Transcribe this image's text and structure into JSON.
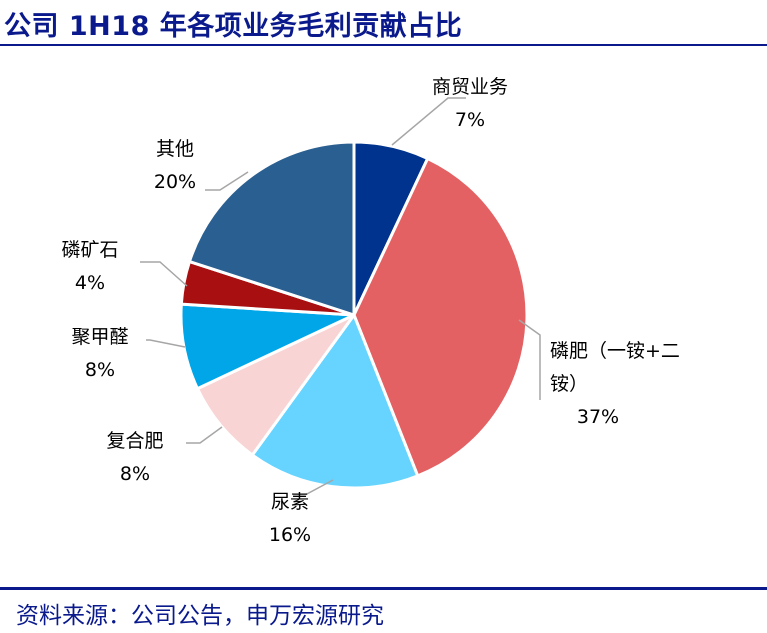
{
  "header": {
    "title": "公司 1H18 年各项业务毛利贡献占比"
  },
  "footer": {
    "source": "资料来源：公司公告，申万宏源研究"
  },
  "chart_data": {
    "type": "pie",
    "slices": [
      {
        "name": "商贸业务",
        "value": 7,
        "percent_label": "7%",
        "color": "#00338d"
      },
      {
        "name": "磷肥（一铵+二铵）",
        "value": 37,
        "percent_label": "37%",
        "color": "#e46163"
      },
      {
        "name": "尿素",
        "value": 16,
        "percent_label": "16%",
        "color": "#66d4ff"
      },
      {
        "name": "复合肥",
        "value": 8,
        "percent_label": "8%",
        "color": "#f8d4d4"
      },
      {
        "name": "聚甲醛",
        "value": 8,
        "percent_label": "8%",
        "color": "#00a6e8"
      },
      {
        "name": "磷矿石",
        "value": 4,
        "percent_label": "4%",
        "color": "#a80f10"
      },
      {
        "name": "其他",
        "value": 20,
        "percent_label": "20%",
        "color": "#2a5f91"
      }
    ]
  }
}
